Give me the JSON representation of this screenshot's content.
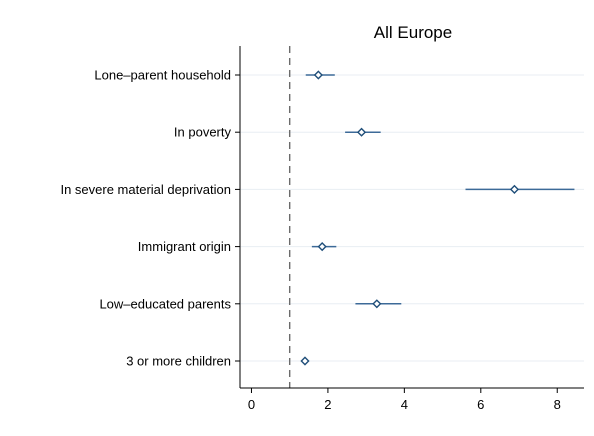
{
  "chart_data": {
    "type": "scatter",
    "subtype": "coefficient-plot",
    "title": "All Europe",
    "xlabel": "",
    "ylabel": "",
    "xlim": [
      -0.3,
      8.7
    ],
    "xticks": [
      0,
      2,
      4,
      6,
      8
    ],
    "xtick_labels": [
      "0",
      "2",
      "4",
      "6",
      "8"
    ],
    "reference_line": 1,
    "grid": "horizontal",
    "colors": {
      "marker": "#1f4e79",
      "ci": "#3c6a98",
      "grid": "#e8eef3",
      "ref": "#6b6b6b"
    },
    "categories": [
      "Lone–parent household",
      "In poverty",
      "In severe material deprivation",
      "Immigrant origin",
      "Low–educated parents",
      "3 or more children"
    ],
    "estimates": [
      1.75,
      2.88,
      6.88,
      1.85,
      3.28,
      1.4
    ],
    "ci_low": [
      1.42,
      2.45,
      5.6,
      1.58,
      2.72,
      1.35
    ],
    "ci_high": [
      2.18,
      3.38,
      8.45,
      2.22,
      3.92,
      1.45
    ]
  }
}
